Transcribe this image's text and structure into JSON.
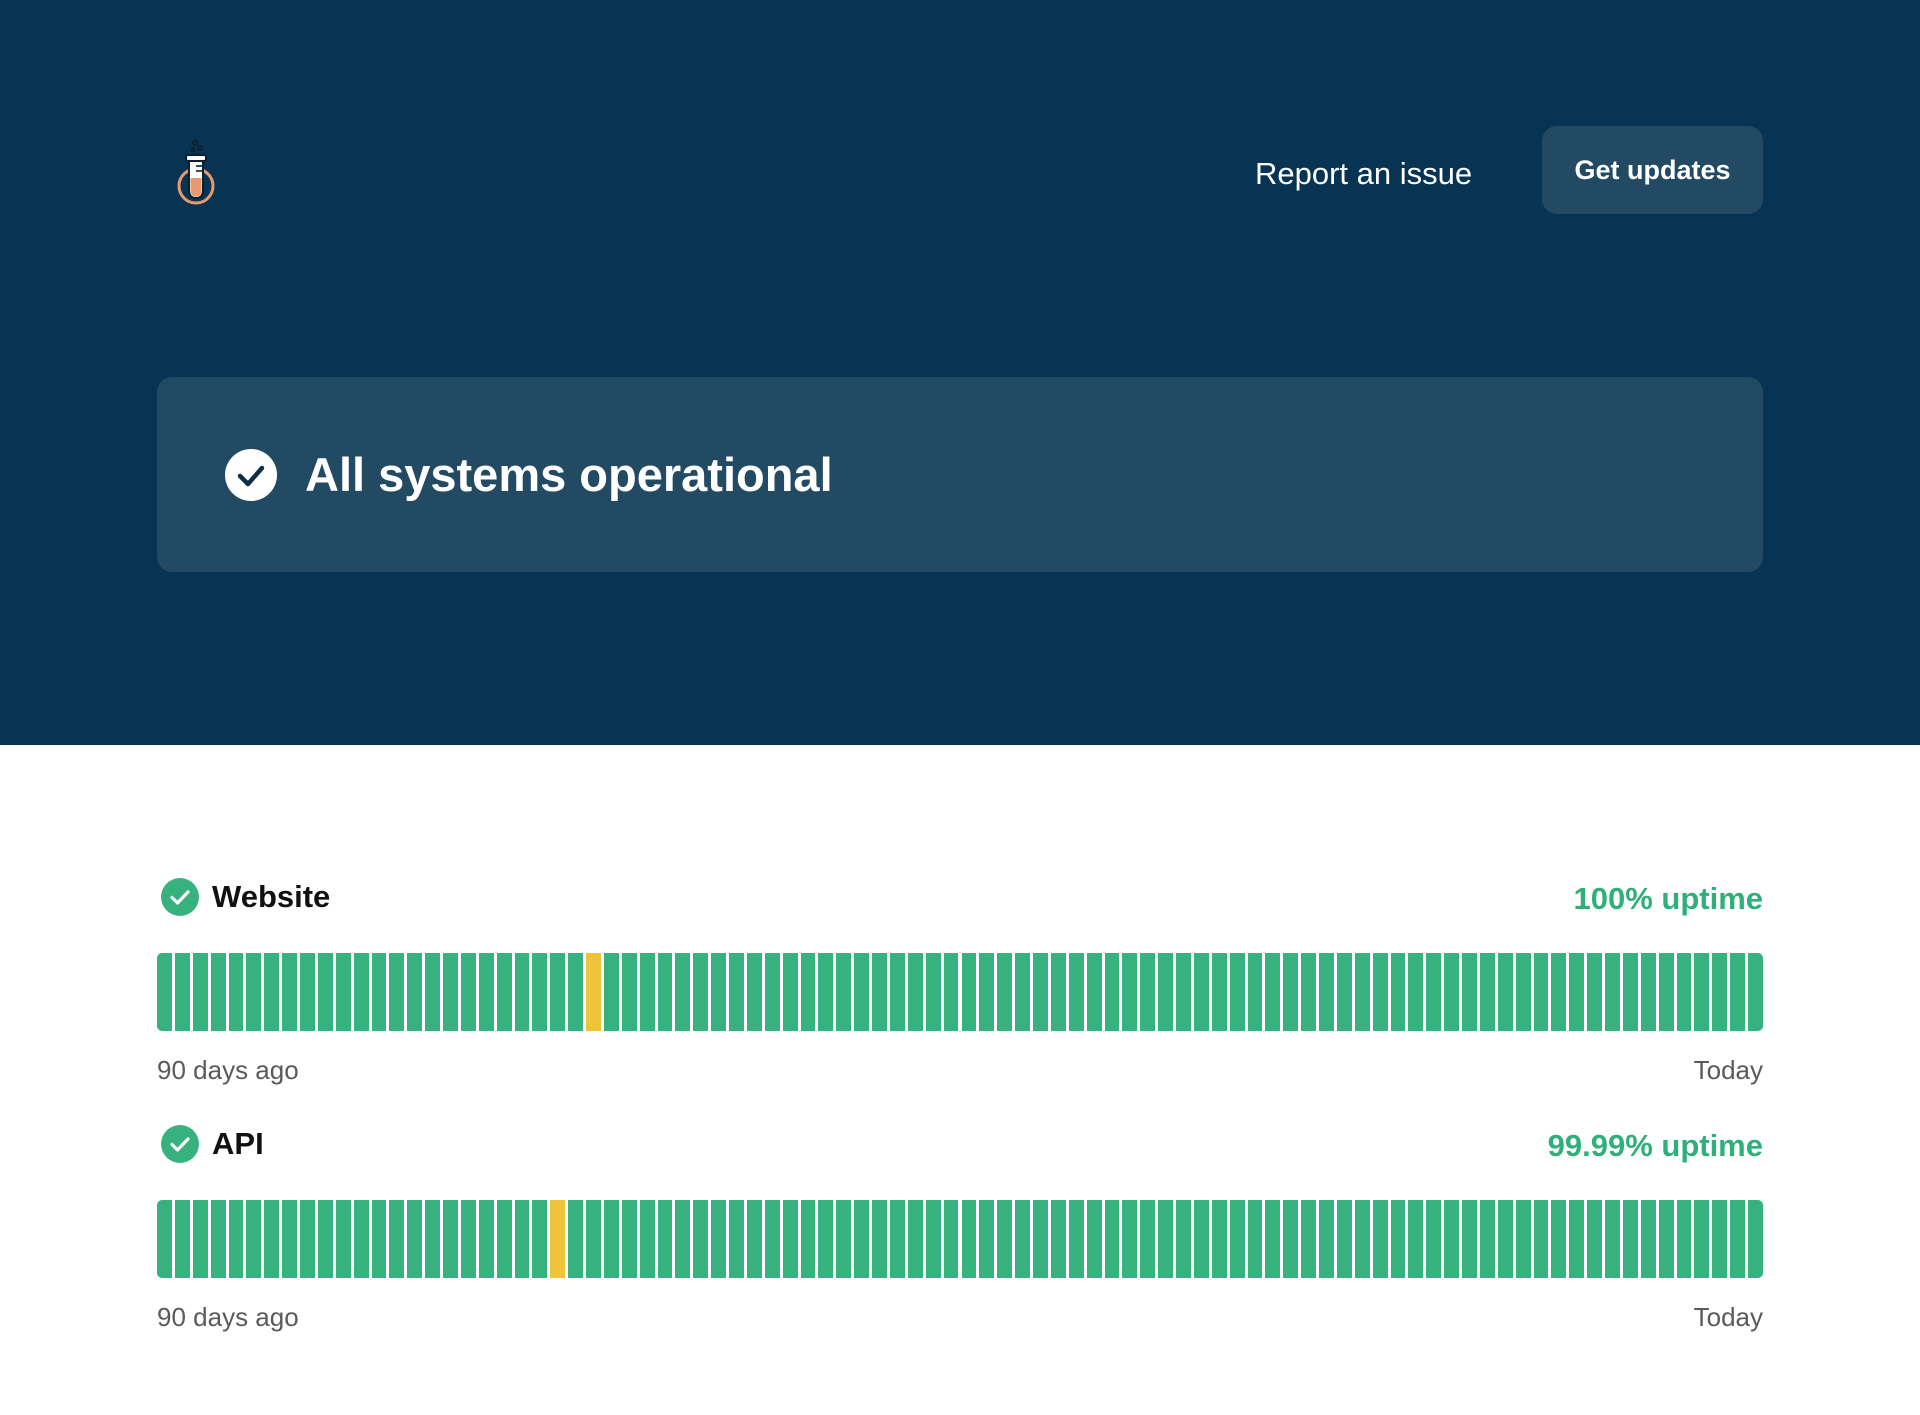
{
  "header": {
    "logo_icon": "test-tube-icon",
    "report_link": "Report an issue",
    "updates_button": "Get updates"
  },
  "status": {
    "icon": "check-circle-icon",
    "message": "All systems operational"
  },
  "components": [
    {
      "name": "Website",
      "uptime": "100% uptime",
      "status_icon": "check-circle-icon",
      "days": 90,
      "degraded_days": [
        24
      ],
      "left_label": "90 days ago",
      "right_label": "Today"
    },
    {
      "name": "API",
      "uptime": "99.99% uptime",
      "status_icon": "check-circle-icon",
      "days": 90,
      "degraded_days": [
        22
      ],
      "left_label": "90 days ago",
      "right_label": "Today"
    }
  ],
  "colors": {
    "hero_bg": "#083453",
    "banner_bg": "#224a63",
    "operational": "#37b27f",
    "degraded": "#f0c33c",
    "uptime_text": "#2fb07a"
  }
}
